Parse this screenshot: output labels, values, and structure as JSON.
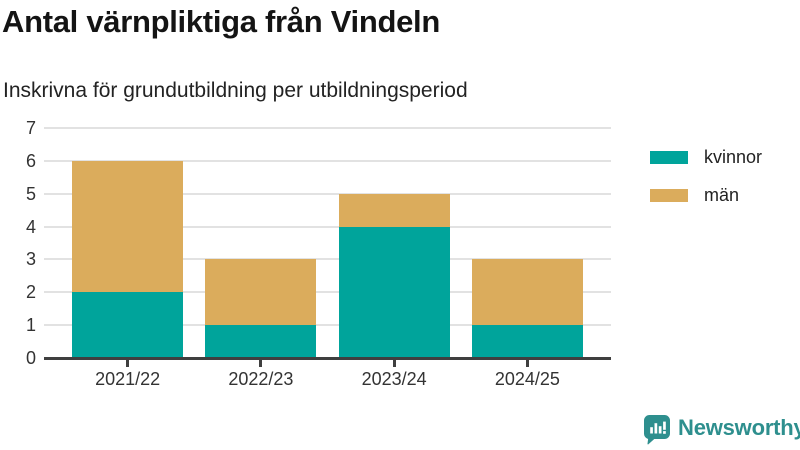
{
  "title": "Antal värnpliktiga från Vindeln",
  "subtitle": "Inskrivna för grundutbildning per utbildningsperiod",
  "chart_data": {
    "type": "bar",
    "stacked": true,
    "title": "Antal värnpliktiga från Vindeln",
    "subtitle": "Inskrivna för grundutbildning per utbildningsperiod",
    "categories": [
      "2021/22",
      "2022/23",
      "2023/24",
      "2024/25"
    ],
    "series": [
      {
        "name": "kvinnor",
        "color": "#00a49b",
        "values": [
          2,
          1,
          4,
          1
        ]
      },
      {
        "name": "män",
        "color": "#dbac5c",
        "values": [
          4,
          2,
          1,
          2
        ]
      }
    ],
    "totals": [
      6,
      3,
      5,
      3
    ],
    "xlabel": "",
    "ylabel": "",
    "ylim": [
      0,
      7
    ],
    "yticks": [
      0,
      1,
      2,
      3,
      4,
      5,
      6,
      7
    ],
    "grid": true,
    "gridline_color": "#e2e2e2",
    "axis_color": "#3f3f3f",
    "legend_position": "right"
  },
  "legend": {
    "items": [
      {
        "label": "kvinnor",
        "color": "#00a49b"
      },
      {
        "label": "män",
        "color": "#dbac5c"
      }
    ]
  },
  "branding": {
    "logo_text": "Newsworthy",
    "logo_color": "#2e8f8e"
  }
}
